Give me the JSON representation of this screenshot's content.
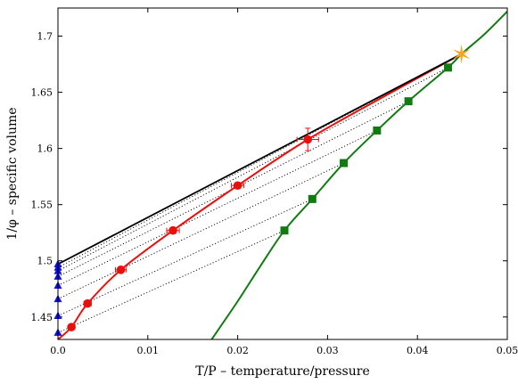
{
  "chart_data": {
    "type": "scatter",
    "title": "",
    "xlabel": "T/P – temperature/pressure",
    "ylabel": "1/φ – specific volume",
    "xlim": [
      0,
      0.05
    ],
    "ylim": [
      1.43,
      1.725
    ],
    "xticks": [
      "0.0",
      "0.01",
      "0.02",
      "0.03",
      "0.04",
      "0.05"
    ],
    "yticks": [
      "1.45",
      "1.5",
      "1.55",
      "1.6",
      "1.65",
      "1.7"
    ],
    "grid": false,
    "colors": {
      "red": "#e8100c",
      "green": "#117a11",
      "blue": "#1010e0",
      "black": "#000000",
      "star": "#f5a623"
    },
    "series": [
      {
        "marker": "circle",
        "color": "red",
        "x": [
          0.0015,
          0.0033,
          0.007,
          0.0128,
          0.02,
          0.0278
        ],
        "y": [
          1.441,
          1.462,
          1.492,
          1.527,
          1.567,
          1.608
        ],
        "xerr": [
          0.0003,
          0.0004,
          0.0006,
          0.0007,
          0.0007,
          0.0012
        ],
        "yerr": [
          0.0,
          0.0,
          0.0,
          0.0,
          0.0,
          0.01
        ]
      },
      {
        "marker": "square",
        "color": "green",
        "x": [
          0.0252,
          0.0283,
          0.0318,
          0.0355,
          0.039,
          0.0434
        ],
        "y": [
          1.527,
          1.555,
          1.587,
          1.616,
          1.642,
          1.672
        ]
      },
      {
        "marker": "triangle",
        "color": "blue",
        "x": [
          0,
          0,
          0,
          0,
          0,
          0,
          0,
          0
        ],
        "y": [
          1.436,
          1.451,
          1.466,
          1.478,
          1.486,
          1.491,
          1.494,
          1.497
        ]
      },
      {
        "marker": "star",
        "color": "star",
        "x": [
          0.0449
        ],
        "y": [
          1.684
        ]
      }
    ],
    "curves": [
      {
        "name": "red fit",
        "color": "red",
        "x": [
          0.0,
          0.0015,
          0.0033,
          0.007,
          0.0128,
          0.02,
          0.0278,
          0.036,
          0.0449
        ],
        "y": [
          1.43,
          1.441,
          1.462,
          1.492,
          1.527,
          1.567,
          1.608,
          1.645,
          1.684
        ]
      },
      {
        "name": "green fit",
        "color": "green",
        "x": [
          0.0171,
          0.02,
          0.0225,
          0.0252,
          0.0283,
          0.0318,
          0.0355,
          0.039,
          0.0434,
          0.0449,
          0.0475,
          0.05
        ],
        "y": [
          1.43,
          1.464,
          1.495,
          1.527,
          1.555,
          1.587,
          1.616,
          1.642,
          1.672,
          1.684,
          1.702,
          1.722
        ]
      },
      {
        "name": "black line",
        "color": "black",
        "x": [
          0.0,
          0.0449
        ],
        "y": [
          1.497,
          1.684
        ]
      }
    ],
    "tie_lines": [
      {
        "from": [
          0,
          1.491
        ],
        "to": [
          0.0434,
          1.672
        ]
      },
      {
        "from": [
          0,
          1.486
        ],
        "to": [
          0.039,
          1.642
        ]
      },
      {
        "from": [
          0,
          1.478
        ],
        "to": [
          0.0355,
          1.616
        ]
      },
      {
        "from": [
          0,
          1.466
        ],
        "to": [
          0.0318,
          1.587
        ]
      },
      {
        "from": [
          0,
          1.451
        ],
        "to": [
          0.0283,
          1.555
        ]
      },
      {
        "from": [
          0,
          1.436
        ],
        "to": [
          0.0252,
          1.527
        ]
      },
      {
        "from": [
          0,
          1.494
        ],
        "to": [
          0.0449,
          1.684
        ]
      }
    ]
  }
}
